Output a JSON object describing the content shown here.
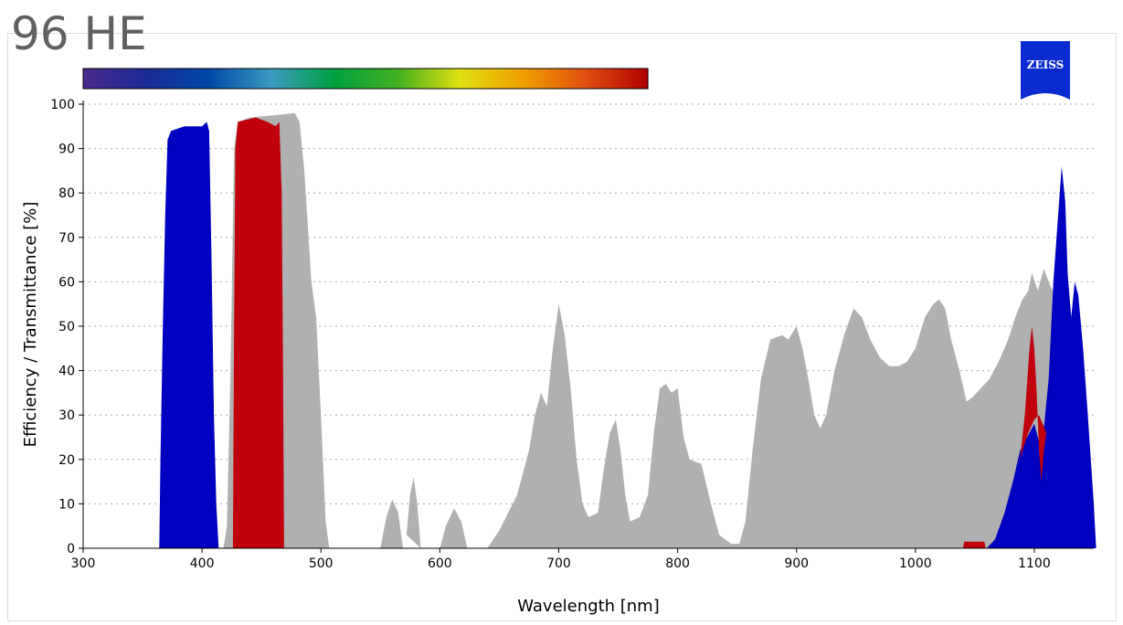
{
  "title": "96 HE",
  "logo": {
    "text": "ZEISS",
    "color": "#0a2bd0"
  },
  "colors": {
    "excitation": "#0000c0",
    "dichroic": "#b0b0b0",
    "emission": "#c0000c",
    "grid": "#aaaaaa"
  },
  "chart_data": {
    "type": "area",
    "title": "96 HE",
    "xlabel": "Wavelength [nm]",
    "ylabel": "Efficiency / Transmittance [%]",
    "xlim": [
      300,
      1150
    ],
    "ylim": [
      0,
      100
    ],
    "xticks": [
      300,
      400,
      500,
      600,
      700,
      800,
      900,
      1000,
      1100
    ],
    "yticks": [
      0,
      10,
      20,
      30,
      40,
      50,
      60,
      70,
      80,
      90,
      100
    ],
    "grid": "horizontal-dotted",
    "spectrum_bar": {
      "from": 300,
      "to": 775,
      "bands": [
        "#4a2a8c",
        "#1a2a98",
        "#0048a8",
        "#3a9ac0",
        "#00a040",
        "#40b020",
        "#e0e010",
        "#f0a000",
        "#e05010",
        "#b00000"
      ]
    },
    "series": [
      {
        "role": "dichroic",
        "color": "#b0b0b0",
        "points": [
          [
            418,
            0
          ],
          [
            421,
            5
          ],
          [
            424,
            40
          ],
          [
            427,
            90
          ],
          [
            430,
            96
          ],
          [
            440,
            97
          ],
          [
            460,
            97.5
          ],
          [
            478,
            98
          ],
          [
            482,
            96
          ],
          [
            486,
            85
          ],
          [
            492,
            60
          ],
          [
            496,
            52
          ],
          [
            500,
            30
          ],
          [
            504,
            6
          ],
          [
            507,
            0
          ],
          [
            550,
            0
          ],
          [
            555,
            7
          ],
          [
            560,
            11
          ],
          [
            565,
            8
          ],
          [
            569,
            0
          ],
          [
            572,
            3
          ],
          [
            575,
            12
          ],
          [
            578,
            16
          ],
          [
            581,
            10
          ],
          [
            584,
            0
          ],
          [
            600,
            0
          ],
          [
            605,
            5
          ],
          [
            612,
            9
          ],
          [
            618,
            6
          ],
          [
            623,
            0
          ],
          [
            640,
            0
          ],
          [
            650,
            4
          ],
          [
            665,
            12
          ],
          [
            675,
            22
          ],
          [
            680,
            30
          ],
          [
            685,
            35
          ],
          [
            690,
            32
          ],
          [
            695,
            45
          ],
          [
            700,
            55
          ],
          [
            705,
            48
          ],
          [
            710,
            36
          ],
          [
            715,
            20
          ],
          [
            720,
            10
          ],
          [
            725,
            7
          ],
          [
            733,
            8
          ],
          [
            738,
            18
          ],
          [
            743,
            26
          ],
          [
            748,
            29
          ],
          [
            752,
            22
          ],
          [
            756,
            12
          ],
          [
            760,
            6
          ],
          [
            768,
            7
          ],
          [
            775,
            12
          ],
          [
            780,
            26
          ],
          [
            785,
            36
          ],
          [
            790,
            37
          ],
          [
            795,
            35
          ],
          [
            800,
            36
          ],
          [
            805,
            25
          ],
          [
            810,
            20
          ],
          [
            820,
            19
          ],
          [
            828,
            10
          ],
          [
            835,
            3
          ],
          [
            845,
            1
          ],
          [
            852,
            1
          ],
          [
            857,
            6
          ],
          [
            863,
            22
          ],
          [
            870,
            38
          ],
          [
            878,
            47
          ],
          [
            888,
            48
          ],
          [
            893,
            47
          ],
          [
            900,
            50
          ],
          [
            905,
            45
          ],
          [
            910,
            38
          ],
          [
            915,
            30
          ],
          [
            920,
            27
          ],
          [
            925,
            30
          ],
          [
            932,
            40
          ],
          [
            940,
            48
          ],
          [
            948,
            54
          ],
          [
            955,
            52
          ],
          [
            962,
            47
          ],
          [
            970,
            43
          ],
          [
            978,
            41
          ],
          [
            986,
            41
          ],
          [
            993,
            42
          ],
          [
            1000,
            45
          ],
          [
            1008,
            52
          ],
          [
            1015,
            55
          ],
          [
            1020,
            56
          ],
          [
            1025,
            54
          ],
          [
            1030,
            47
          ],
          [
            1037,
            40
          ],
          [
            1043,
            33
          ],
          [
            1048,
            34
          ],
          [
            1055,
            36
          ],
          [
            1062,
            38
          ],
          [
            1070,
            42
          ],
          [
            1078,
            47
          ],
          [
            1084,
            52
          ],
          [
            1090,
            56
          ],
          [
            1095,
            58
          ],
          [
            1098,
            62
          ],
          [
            1103,
            58
          ],
          [
            1108,
            63
          ],
          [
            1112,
            60
          ],
          [
            1117,
            57
          ],
          [
            1122,
            55
          ],
          [
            1127,
            50
          ],
          [
            1133,
            30
          ],
          [
            1140,
            8
          ],
          [
            1146,
            0
          ]
        ]
      },
      {
        "role": "excitation",
        "color": "#0000c0",
        "points": [
          [
            364,
            0
          ],
          [
            365,
            20
          ],
          [
            367,
            50
          ],
          [
            369,
            75
          ],
          [
            371,
            92
          ],
          [
            374,
            94
          ],
          [
            385,
            95
          ],
          [
            400,
            95
          ],
          [
            404,
            96
          ],
          [
            406,
            94
          ],
          [
            408,
            65
          ],
          [
            410,
            30
          ],
          [
            412,
            10
          ],
          [
            414,
            0
          ],
          [
            1060,
            0
          ],
          [
            1067,
            2
          ],
          [
            1075,
            8
          ],
          [
            1082,
            15
          ],
          [
            1088,
            22
          ],
          [
            1094,
            25
          ],
          [
            1100,
            28
          ],
          [
            1104,
            24
          ],
          [
            1108,
            27
          ],
          [
            1112,
            38
          ],
          [
            1116,
            60
          ],
          [
            1120,
            75
          ],
          [
            1123,
            86
          ],
          [
            1126,
            78
          ],
          [
            1128,
            62
          ],
          [
            1131,
            52
          ],
          [
            1134,
            60
          ],
          [
            1137,
            57
          ],
          [
            1141,
            45
          ],
          [
            1145,
            30
          ],
          [
            1150,
            10
          ],
          [
            1152,
            0
          ]
        ]
      },
      {
        "role": "emission",
        "color": "#c0000c",
        "points": [
          [
            426,
            0
          ],
          [
            427,
            50
          ],
          [
            428,
            90
          ],
          [
            430,
            96
          ],
          [
            445,
            97
          ],
          [
            455,
            96
          ],
          [
            462,
            95
          ],
          [
            465,
            96
          ],
          [
            467,
            80
          ],
          [
            468,
            45
          ],
          [
            469,
            0
          ],
          [
            1040,
            0
          ],
          [
            1041,
            1.5
          ],
          [
            1058,
            1.5
          ],
          [
            1059,
            0
          ],
          [
            1088,
            20
          ],
          [
            1092,
            30
          ],
          [
            1096,
            45
          ],
          [
            1098,
            50
          ],
          [
            1100,
            45
          ],
          [
            1102,
            35
          ],
          [
            1104,
            22
          ],
          [
            1106,
            15
          ],
          [
            1108,
            22
          ],
          [
            1110,
            26
          ],
          [
            1104,
            30
          ],
          [
            1100,
            29
          ],
          [
            1095,
            26
          ],
          [
            1090,
            22
          ],
          [
            1088,
            20
          ]
        ]
      }
    ]
  }
}
